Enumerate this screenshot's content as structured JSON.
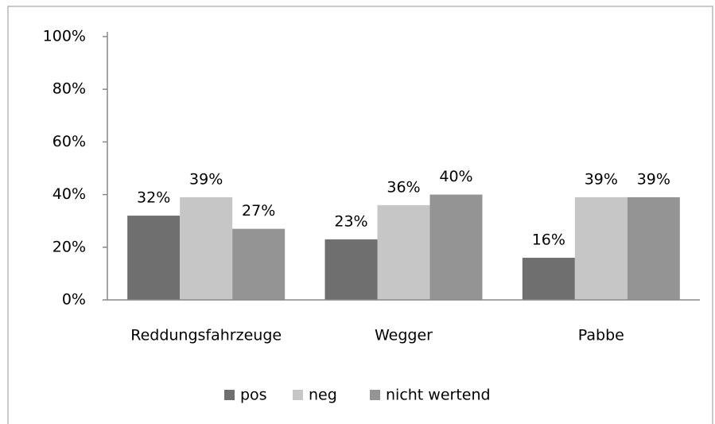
{
  "chart_data": {
    "type": "bar",
    "categories": [
      "Reddungsfahrzeuge",
      "Wegger",
      "Pabbe"
    ],
    "series": [
      {
        "name": "pos",
        "color": "#6f6f6f",
        "values": [
          32,
          23,
          16
        ],
        "value_labels": [
          "32%",
          "23%",
          "16%"
        ]
      },
      {
        "name": "neg",
        "color": "#c6c6c6",
        "values": [
          39,
          36,
          39
        ],
        "value_labels": [
          "39%",
          "36%",
          "39%"
        ]
      },
      {
        "name": "nicht wertend",
        "color": "#949494",
        "values": [
          27,
          40,
          39
        ],
        "value_labels": [
          "27%",
          "40%",
          "39%"
        ]
      }
    ],
    "ylim": [
      0,
      100
    ],
    "yticks": [
      {
        "value": 0,
        "label": "0%"
      },
      {
        "value": 20,
        "label": "20%"
      },
      {
        "value": 40,
        "label": "40%"
      },
      {
        "value": 60,
        "label": "60%"
      },
      {
        "value": 80,
        "label": "80%"
      },
      {
        "value": 100,
        "label": "100%"
      }
    ],
    "grid": false,
    "legend": "bottom"
  }
}
